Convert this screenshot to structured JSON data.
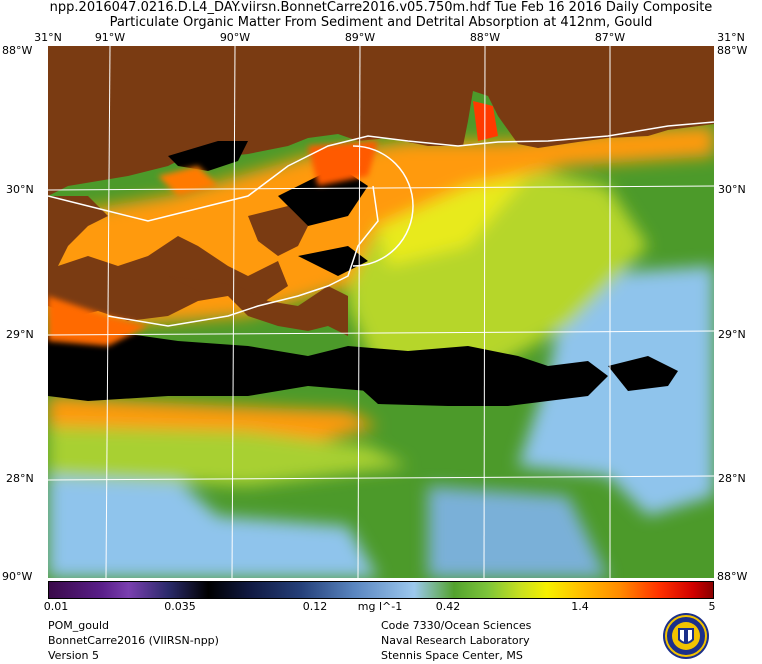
{
  "title": {
    "line1": "npp.2016047.0216.D.L4_DAY.viirsn.BonnetCarre2016.v05.750m.hdf     Tue Feb 16 2016 Daily Composite",
    "line2": "Particulate Organic Matter From Sediment and Detrital Absorption at 412nm, Gould"
  },
  "top_lon_labels": [
    "31°N",
    "91°W",
    "90°W",
    "89°W",
    "88°W",
    "87°W",
    "31°N"
  ],
  "left_lat_labels": [
    "30°N",
    "29°N",
    "28°N"
  ],
  "right_lat_labels": [
    "30°N",
    "29°N",
    "28°N"
  ],
  "corner_labels": {
    "top_left": "88°W",
    "top_right": "88°W",
    "bottom_left": "90°W",
    "bottom_right": "88°W"
  },
  "colorbar": {
    "ticks": [
      "0.01",
      "0.035",
      "0.12",
      "0.42",
      "1.4",
      "5"
    ],
    "unit": "mg l^-1"
  },
  "footer_left": [
    "POM_gould",
    "BonnetCarre2016 (VIIRSN-npp)",
    "Version 5"
  ],
  "footer_right": [
    "Code 7330/Ocean Sciences",
    "Naval Research Laboratory",
    "Stennis Space Center, MS"
  ],
  "colors": {
    "land": "#7a3b12",
    "nodata": "#000000",
    "grid": "#ffffff"
  }
}
